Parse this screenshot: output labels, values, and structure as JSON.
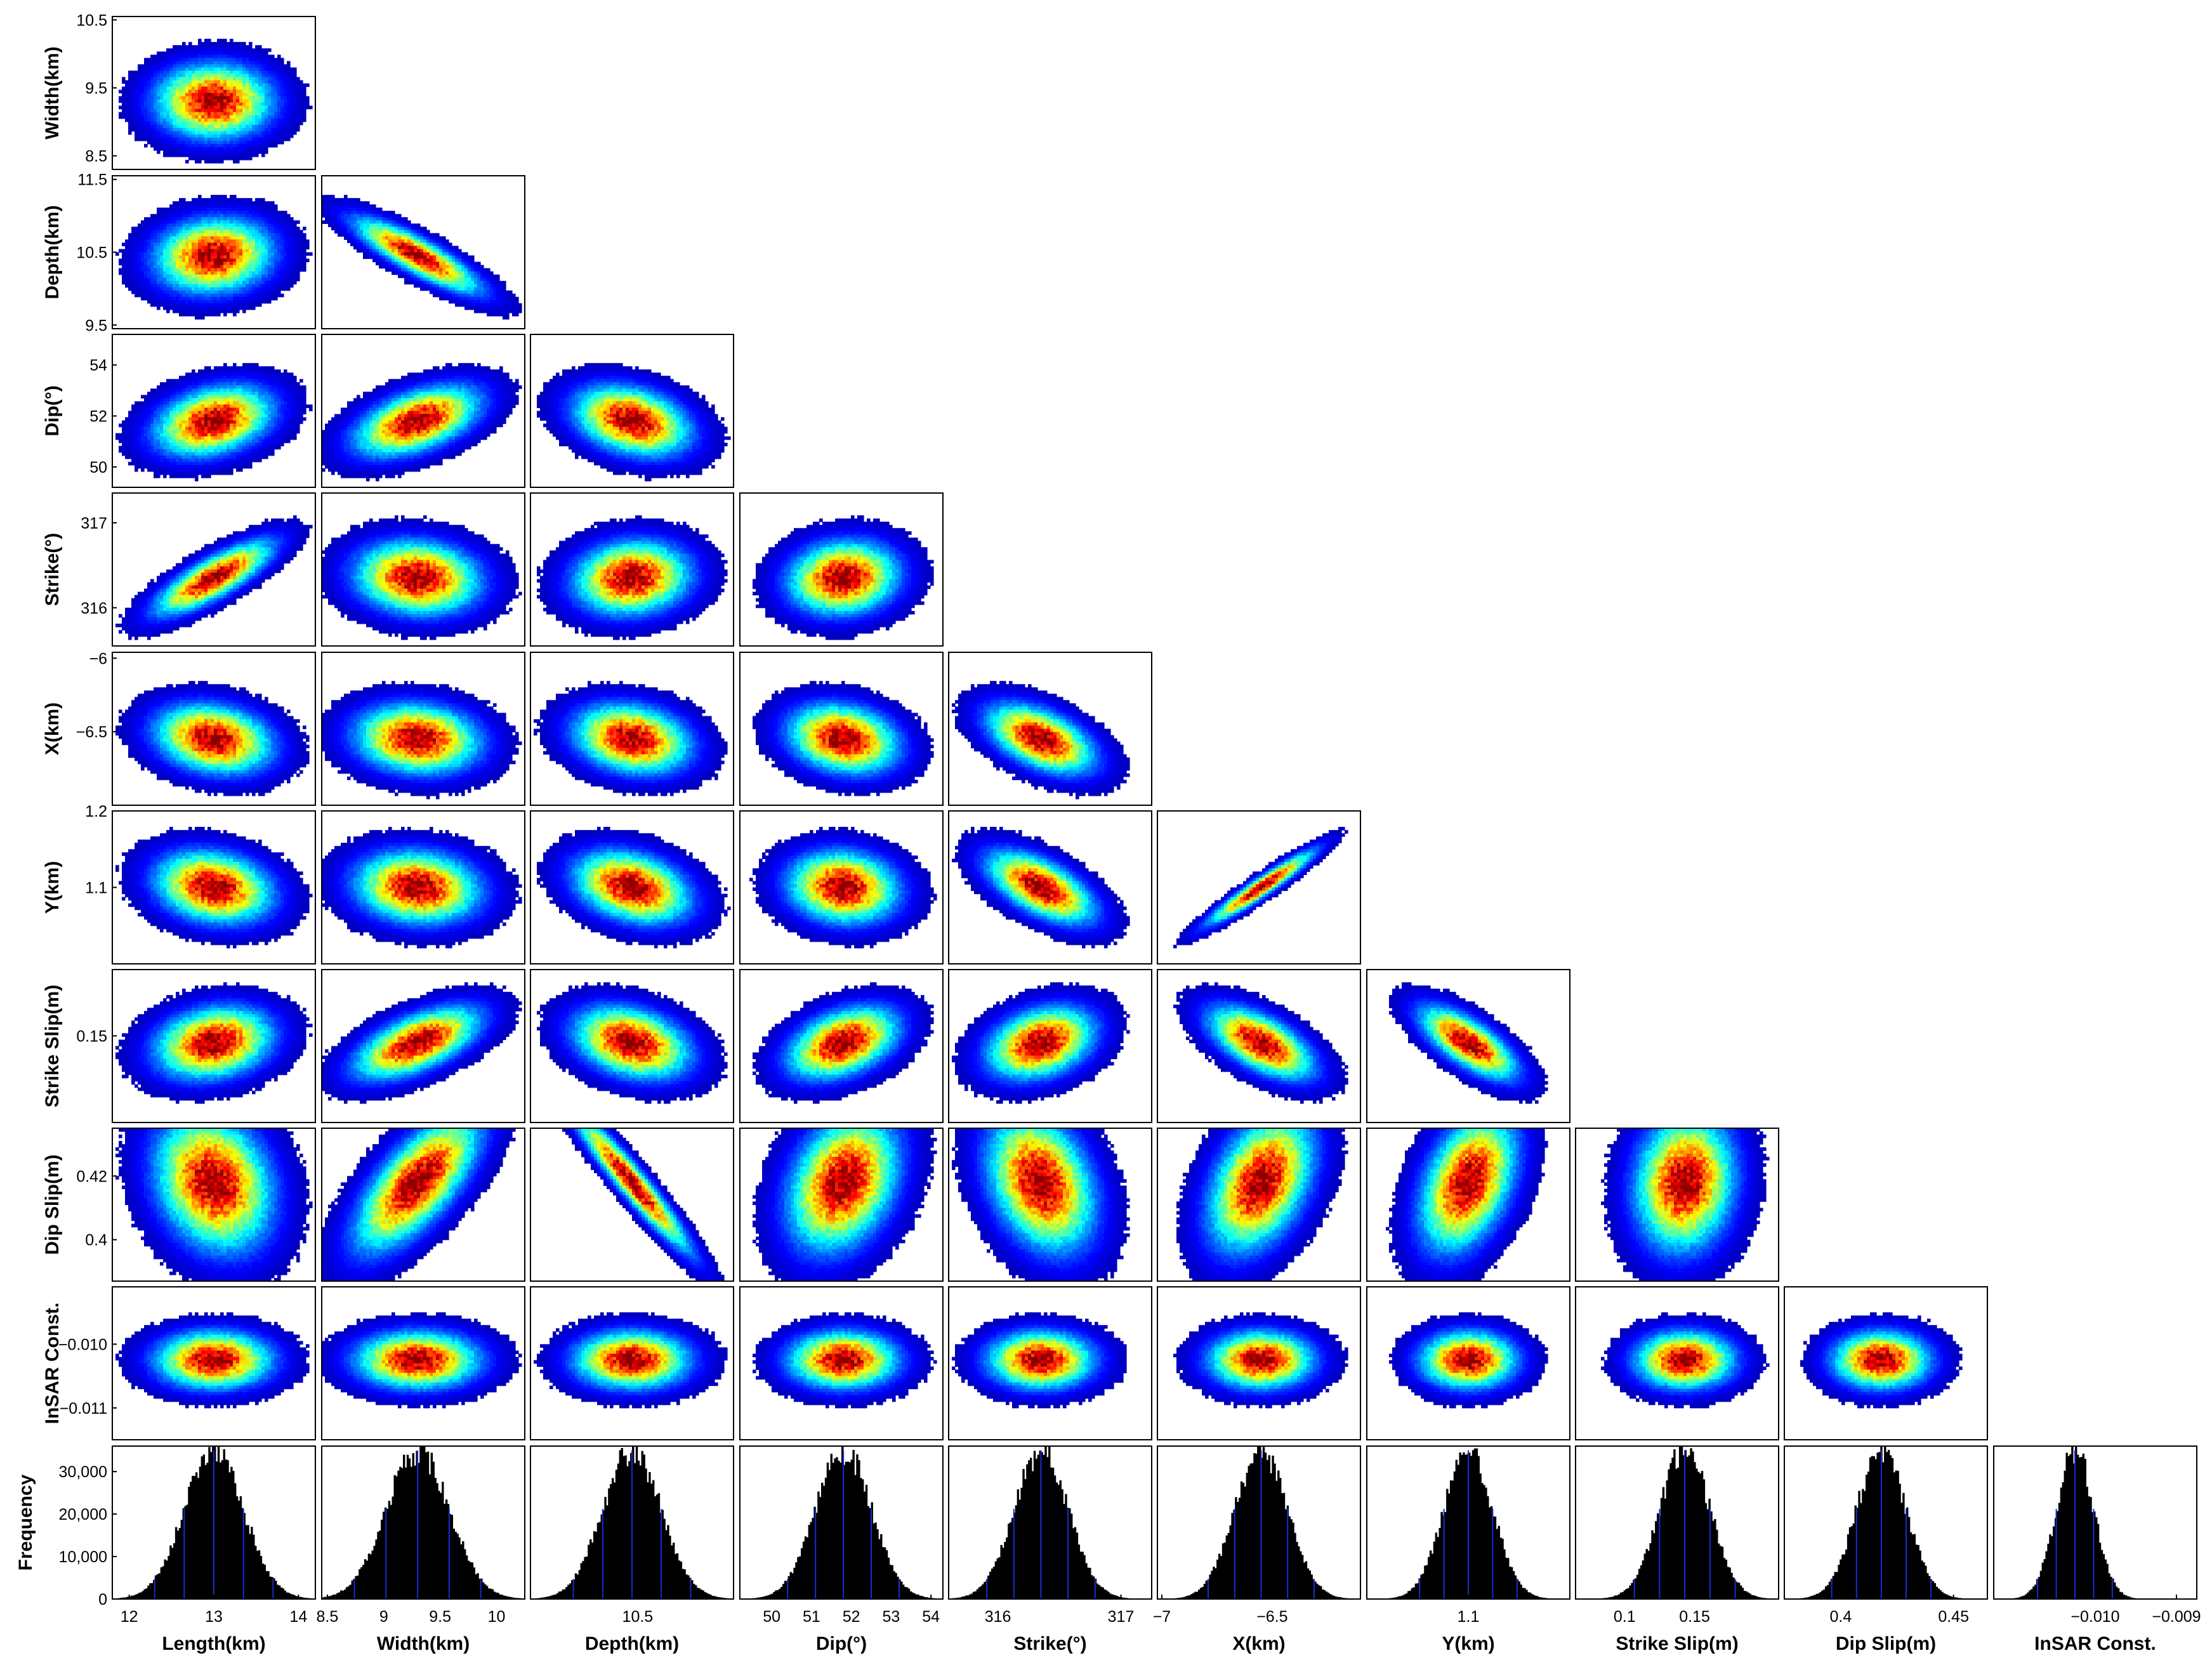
{
  "chart_data": {
    "type": "corner",
    "description_note": "",
    "parameters": [
      {
        "id": "length",
        "label": "Length(km)",
        "mean": 13.0,
        "sd": 0.35,
        "xlim": [
          11.8,
          14.2
        ],
        "ticks": [
          "12",
          "13",
          "14"
        ],
        "tick_values": [
          12,
          13,
          14
        ]
      },
      {
        "id": "width",
        "label": "Width(km)",
        "mean": 9.3,
        "sd": 0.28,
        "xlim": [
          8.45,
          10.25
        ],
        "ticks": [
          "8.5",
          "9",
          "9.5",
          "10"
        ],
        "tick_values": [
          8.5,
          9,
          9.5,
          10
        ]
      },
      {
        "id": "depth",
        "label": "Depth(km)",
        "mean": 10.45,
        "sd": 0.26,
        "xlim": [
          9.55,
          11.35
        ],
        "ticks": [
          "10.5"
        ],
        "tick_values": [
          10.5
        ]
      },
      {
        "id": "dip",
        "label": "Dip(°)",
        "mean": 51.8,
        "sd": 0.7,
        "xlim": [
          49.2,
          54.3
        ],
        "ticks": [
          "50",
          "51",
          "52",
          "53",
          "54"
        ],
        "tick_values": [
          50,
          51,
          52,
          53,
          54
        ]
      },
      {
        "id": "strike",
        "label": "Strike(°)",
        "mean": 316.35,
        "sd": 0.22,
        "xlim": [
          315.6,
          317.25
        ],
        "ticks": [
          "316",
          "317"
        ],
        "tick_values": [
          316,
          317
        ]
      },
      {
        "id": "x",
        "label": "X(km)",
        "mean": -6.55,
        "sd": 0.12,
        "xlim": [
          -7.02,
          -6.1
        ],
        "ticks": [
          "−7",
          "−6.5"
        ],
        "tick_values": [
          -7,
          -6.5
        ]
      },
      {
        "id": "y",
        "label": "Y(km)",
        "mean": 1.1,
        "sd": 0.024,
        "xlim": [
          1.0,
          1.2
        ],
        "ticks": [
          "1.1"
        ],
        "tick_values": [
          1.1
        ]
      },
      {
        "id": "strike_slip",
        "label": "Strike Slip(m)",
        "mean": 0.143,
        "sd": 0.018,
        "xlim": [
          0.065,
          0.21
        ],
        "ticks": [
          "0.1",
          "0.15"
        ],
        "tick_values": [
          0.1,
          0.15
        ]
      },
      {
        "id": "dip_slip",
        "label": "Dip Slip(m)",
        "mean": 0.418,
        "sd": 0.011,
        "xlim": [
          0.375,
          0.465
        ],
        "ticks": [
          "0.4",
          "0.45"
        ],
        "tick_values": [
          0.4,
          0.45
        ]
      },
      {
        "id": "insar_const",
        "label": "InSAR Const.",
        "mean": -0.01025,
        "sd": 0.00023,
        "xlim": [
          -0.01125,
          -0.00875
        ],
        "ticks": [
          "−0.010",
          "−0.009"
        ],
        "tick_values": [
          -0.01,
          -0.009
        ]
      }
    ],
    "row_axes": [
      {
        "row": 1,
        "label": "Width(km)",
        "ticks": [
          "10.5",
          "9.5",
          "8.5"
        ],
        "tick_values": [
          10.5,
          9.5,
          8.5
        ],
        "ylim": [
          8.3,
          10.55
        ]
      },
      {
        "row": 2,
        "label": "Depth(km)",
        "ticks": [
          "11.5",
          "10.5",
          "9.5"
        ],
        "tick_values": [
          11.5,
          10.5,
          9.5
        ],
        "ylim": [
          9.45,
          11.55
        ]
      },
      {
        "row": 3,
        "label": "Dip(°)",
        "ticks": [
          "54",
          "52",
          "50"
        ],
        "tick_values": [
          54,
          52,
          50
        ],
        "ylim": [
          49.2,
          55.2
        ]
      },
      {
        "row": 4,
        "label": "Strike(°)",
        "ticks": [
          "317",
          "316"
        ],
        "tick_values": [
          317,
          316
        ],
        "ylim": [
          315.55,
          317.35
        ]
      },
      {
        "row": 5,
        "label": "X(km)",
        "ticks": [
          "−6",
          "−6.5"
        ],
        "tick_values": [
          -6,
          -6.5
        ],
        "ylim": [
          -7.0,
          -5.96
        ]
      },
      {
        "row": 6,
        "label": "Y(km)",
        "ticks": [
          "1.2",
          "1.1"
        ],
        "tick_values": [
          1.2,
          1.1
        ],
        "ylim": [
          1.0,
          1.2
        ]
      },
      {
        "row": 7,
        "label": "Strike Slip(m)",
        "ticks": [
          "0.15"
        ],
        "tick_values": [
          0.15
        ],
        "ylim": [
          0.065,
          0.215
        ]
      },
      {
        "row": 8,
        "label": "Dip Slip(m)",
        "ticks": [
          "0.42",
          "0.4"
        ],
        "tick_values": [
          0.42,
          0.4
        ],
        "ylim": [
          0.387,
          0.435
        ]
      },
      {
        "row": 9,
        "label": "InSAR Const.",
        "ticks": [
          "−0.010",
          "−0.011"
        ],
        "tick_values": [
          -0.01,
          -0.011
        ],
        "ylim": [
          -0.0115,
          -0.0091
        ]
      },
      {
        "row": 10,
        "label": "Frequency",
        "ticks": [
          "30,000",
          "20,000",
          "10,000",
          "0"
        ],
        "tick_values": [
          30000,
          20000,
          10000,
          0
        ],
        "ylim": [
          0,
          36000
        ]
      }
    ],
    "correlations": {
      "1_0": 0.0,
      "2_0": 0.1,
      "2_1": -0.85,
      "3_0": 0.3,
      "3_1": 0.5,
      "3_2": -0.3,
      "4_0": 0.8,
      "4_1": -0.1,
      "4_2": 0.1,
      "4_3": 0.1,
      "5_0": -0.2,
      "5_1": -0.1,
      "5_2": -0.2,
      "5_3": -0.2,
      "5_4": -0.5,
      "6_0": -0.2,
      "6_1": -0.1,
      "6_2": -0.3,
      "6_3": -0.1,
      "6_4": -0.6,
      "6_5": 0.95,
      "7_0": 0.2,
      "7_1": 0.6,
      "7_2": -0.3,
      "7_3": 0.4,
      "7_4": 0.3,
      "7_5": -0.6,
      "7_6": -0.7,
      "8_0": -0.2,
      "8_1": 0.7,
      "8_2": -0.95,
      "8_3": 0.3,
      "8_4": -0.3,
      "8_5": 0.4,
      "8_6": 0.4,
      "8_7": 0.1,
      "9_0": 0.0,
      "9_1": 0.0,
      "9_2": 0.0,
      "9_3": 0.0,
      "9_4": 0.0,
      "9_5": 0.0,
      "9_6": 0.0,
      "9_7": 0.0,
      "9_8": 0.0
    },
    "histogram_peak_frequency": 35000,
    "colormap": "jet",
    "colors": {
      "histogram_bar": "#000000",
      "histogram_marker": "#1a2bd6",
      "axes": "#000000"
    },
    "grid": false,
    "legend": "none"
  }
}
